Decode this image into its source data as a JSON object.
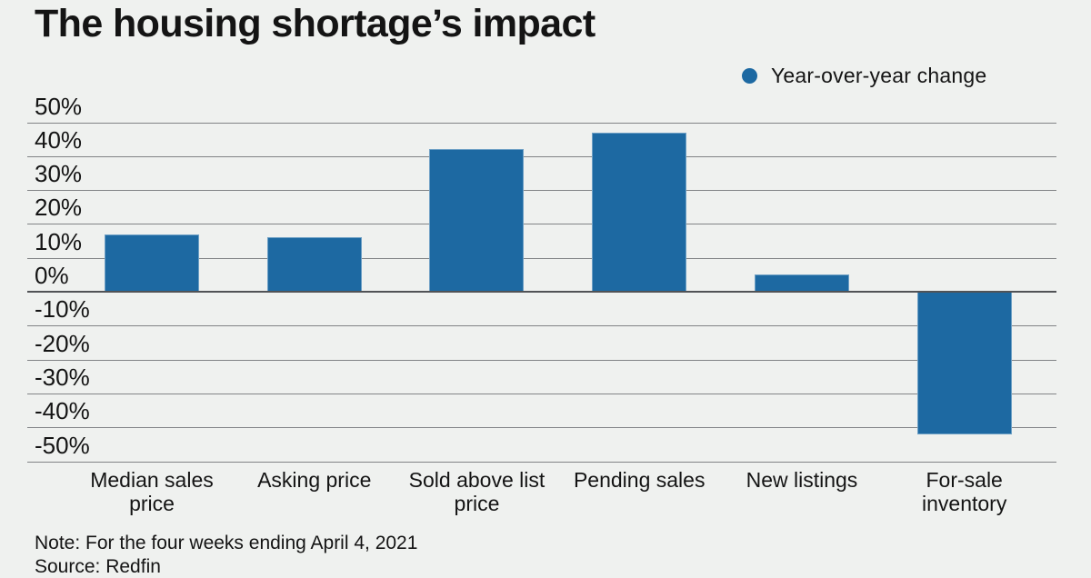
{
  "page": {
    "background": "#eff1ef",
    "accent": "#1d69a2",
    "text_color": "#141414"
  },
  "header": {
    "title": "The housing shortage’s impact"
  },
  "legend": {
    "marker": "legend-dot",
    "label": "Year-over-year change"
  },
  "chart_data": {
    "type": "bar",
    "title": "The housing shortage’s impact",
    "legend_entries": [
      "Year-over-year change"
    ],
    "legend_position": "top-right",
    "categories": [
      "Median sales price",
      "Asking price",
      "Sold above list price",
      "Pending sales",
      "New listings",
      "For-sale inventory"
    ],
    "values": [
      17,
      16,
      42,
      47,
      5,
      -42
    ],
    "unit": "%",
    "xlabel": "",
    "ylabel": "",
    "ylim": [
      -50,
      50
    ],
    "ytick_step": 10,
    "ytick_labels": [
      "50%",
      "40%",
      "30%",
      "20%",
      "10%",
      "0%",
      "-10%",
      "-20%",
      "-30%",
      "-40%",
      "-50%"
    ],
    "grid": true,
    "zero_line_emphasized": true,
    "bar_color": "#1d69a2",
    "gridline_color": "#818386",
    "zero_line_color": "#515356"
  },
  "footer": {
    "note": "Note: For the four weeks ending April 4, 2021",
    "source": "Source: Redfin"
  }
}
